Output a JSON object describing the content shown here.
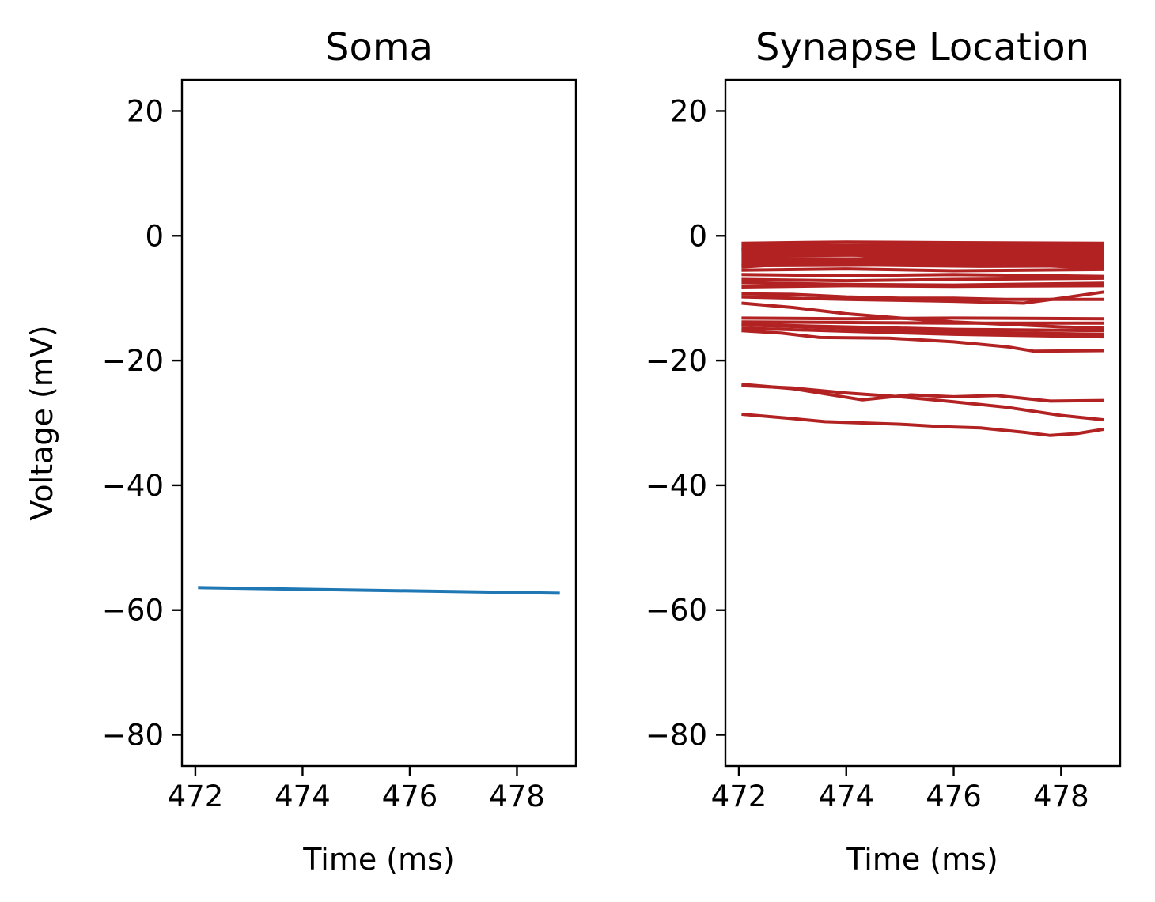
{
  "colors": {
    "soma": "#1f77b4",
    "synapse": "#b22222"
  },
  "chart_data": [
    {
      "type": "line",
      "title": "Soma",
      "xlabel": "Time (ms)",
      "ylabel": "Voltage (mV)",
      "xlim": [
        471.75,
        479.1
      ],
      "ylim": [
        -85,
        25
      ],
      "xticks": [
        472,
        474,
        476,
        478
      ],
      "yticks": [
        20,
        0,
        -20,
        -40,
        -60,
        -80
      ],
      "xtick_labels": [
        "472",
        "474",
        "476",
        "478"
      ],
      "ytick_labels": [
        "20",
        "0",
        "−20",
        "−40",
        "−60",
        "−80"
      ],
      "series": [
        {
          "x": [
            472.05,
            478.8
          ],
          "y": [
            -56.4,
            -57.3
          ]
        }
      ]
    },
    {
      "type": "line",
      "title": "Synapse Location",
      "xlabel": "Time (ms)",
      "ylabel": "",
      "xlim": [
        471.75,
        479.1
      ],
      "ylim": [
        -85,
        25
      ],
      "xticks": [
        472,
        474,
        476,
        478
      ],
      "yticks": [
        20,
        0,
        -20,
        -40,
        -60,
        -80
      ],
      "xtick_labels": [
        "472",
        "474",
        "476",
        "478"
      ],
      "ytick_labels": [
        "20",
        "0",
        "−20",
        "−40",
        "−60",
        "−80"
      ],
      "series": [
        {
          "x": [
            472.05,
            474.0,
            476.0,
            478.8
          ],
          "y": [
            -1.2,
            -1.0,
            -1.1,
            -1.2
          ]
        },
        {
          "x": [
            472.05,
            474.5,
            476.5,
            478.8
          ],
          "y": [
            -1.6,
            -1.5,
            -1.6,
            -1.6
          ]
        },
        {
          "x": [
            472.05,
            474.0,
            476.0,
            478.8
          ],
          "y": [
            -2.0,
            -2.1,
            -2.0,
            -2.1
          ]
        },
        {
          "x": [
            472.05,
            474.5,
            476.5,
            478.8
          ],
          "y": [
            -2.4,
            -2.5,
            -2.4,
            -2.5
          ]
        },
        {
          "x": [
            472.05,
            474.0,
            476.0,
            478.8
          ],
          "y": [
            -2.8,
            -2.9,
            -2.8,
            -2.9
          ]
        },
        {
          "x": [
            472.05,
            474.5,
            476.5,
            478.8
          ],
          "y": [
            -3.2,
            -3.1,
            -3.3,
            -3.2
          ]
        },
        {
          "x": [
            472.05,
            474.0,
            476.0,
            478.8
          ],
          "y": [
            -3.6,
            -3.7,
            -3.6,
            -3.7
          ]
        },
        {
          "x": [
            472.05,
            474.5,
            476.5,
            478.8
          ],
          "y": [
            -4.0,
            -4.1,
            -4.0,
            -4.1
          ]
        },
        {
          "x": [
            472.05,
            474.0,
            476.0,
            478.8
          ],
          "y": [
            -4.4,
            -4.5,
            -4.4,
            -4.5
          ]
        },
        {
          "x": [
            472.05,
            474.5,
            476.5,
            478.8
          ],
          "y": [
            -4.8,
            -4.7,
            -4.9,
            -4.8
          ]
        },
        {
          "x": [
            472.05,
            474.0,
            476.0,
            478.8
          ],
          "y": [
            -2.0,
            -3.0,
            -4.2,
            -5.2
          ]
        },
        {
          "x": [
            472.05,
            474.0,
            476.0,
            478.8
          ],
          "y": [
            -5.0,
            -4.0,
            -3.0,
            -2.0
          ]
        },
        {
          "x": [
            472.05,
            474.0,
            476.0,
            478.8
          ],
          "y": [
            -5.5,
            -5.3,
            -5.6,
            -5.4
          ]
        },
        {
          "x": [
            472.05,
            474.0,
            476.0,
            478.8
          ],
          "y": [
            -6.2,
            -6.4,
            -6.2,
            -6.5
          ]
        },
        {
          "x": [
            472.05,
            474.0,
            476.0,
            478.8
          ],
          "y": [
            -7.0,
            -7.2,
            -7.0,
            -6.8
          ]
        },
        {
          "x": [
            472.05,
            474.0,
            476.0,
            478.8
          ],
          "y": [
            -7.5,
            -7.8,
            -7.9,
            -7.6
          ]
        },
        {
          "x": [
            472.05,
            474.0,
            476.0,
            478.8
          ],
          "y": [
            -8.2,
            -8.0,
            -8.1,
            -8.0
          ]
        },
        {
          "x": [
            472.05,
            473.0,
            474.0,
            475.0,
            476.0,
            477.0,
            477.8,
            478.8
          ],
          "y": [
            -9.3,
            -9.4,
            -9.8,
            -10.0,
            -10.0,
            -10.2,
            -10.2,
            -10.2
          ]
        },
        {
          "x": [
            472.05,
            474.0,
            476.0,
            477.3,
            478.0,
            478.8
          ],
          "y": [
            -9.8,
            -10.2,
            -10.5,
            -10.8,
            -10.0,
            -9.0
          ]
        },
        {
          "x": [
            472.05,
            473.0,
            474.0,
            475.0,
            476.0,
            477.0,
            478.0,
            478.8
          ],
          "y": [
            -10.8,
            -11.5,
            -12.5,
            -13.2,
            -13.8,
            -14.2,
            -14.6,
            -14.8
          ]
        },
        {
          "x": [
            472.05,
            474.0,
            476.0,
            478.8
          ],
          "y": [
            -13.2,
            -13.3,
            -13.2,
            -13.3
          ]
        },
        {
          "x": [
            472.05,
            474.0,
            476.0,
            478.8
          ],
          "y": [
            -13.8,
            -13.9,
            -14.0,
            -14.0
          ]
        },
        {
          "x": [
            472.05,
            474.0,
            476.0,
            478.8
          ],
          "y": [
            -14.2,
            -14.6,
            -15.0,
            -15.2
          ]
        },
        {
          "x": [
            472.05,
            474.0,
            476.0,
            478.8
          ],
          "y": [
            -14.3,
            -14.8,
            -15.4,
            -15.8
          ]
        },
        {
          "x": [
            472.05,
            474.0,
            476.0,
            478.8
          ],
          "y": [
            -14.8,
            -15.3,
            -15.8,
            -16.2
          ]
        },
        {
          "x": [
            472.05,
            472.8,
            473.5,
            474.8,
            476.0,
            477.0,
            477.5,
            478.8
          ],
          "y": [
            -15.2,
            -15.6,
            -16.3,
            -16.4,
            -17.0,
            -17.8,
            -18.5,
            -18.4
          ]
        },
        {
          "x": [
            472.05,
            473.0,
            474.3,
            475.2,
            476.0,
            476.8,
            477.8,
            478.8
          ],
          "y": [
            -23.8,
            -24.5,
            -26.3,
            -25.5,
            -25.8,
            -25.6,
            -26.5,
            -26.4
          ]
        },
        {
          "x": [
            472.05,
            473.0,
            474.0,
            475.0,
            476.0,
            477.0,
            478.0,
            478.8
          ],
          "y": [
            -24.0,
            -24.4,
            -25.2,
            -25.8,
            -26.6,
            -27.5,
            -28.8,
            -29.5
          ]
        },
        {
          "x": [
            472.05,
            473.0,
            473.6,
            475.0,
            475.8,
            476.5,
            477.3,
            477.8,
            478.3,
            478.8
          ],
          "y": [
            -28.6,
            -29.3,
            -29.8,
            -30.2,
            -30.6,
            -30.8,
            -31.5,
            -32.0,
            -31.7,
            -31.0
          ]
        }
      ]
    }
  ]
}
